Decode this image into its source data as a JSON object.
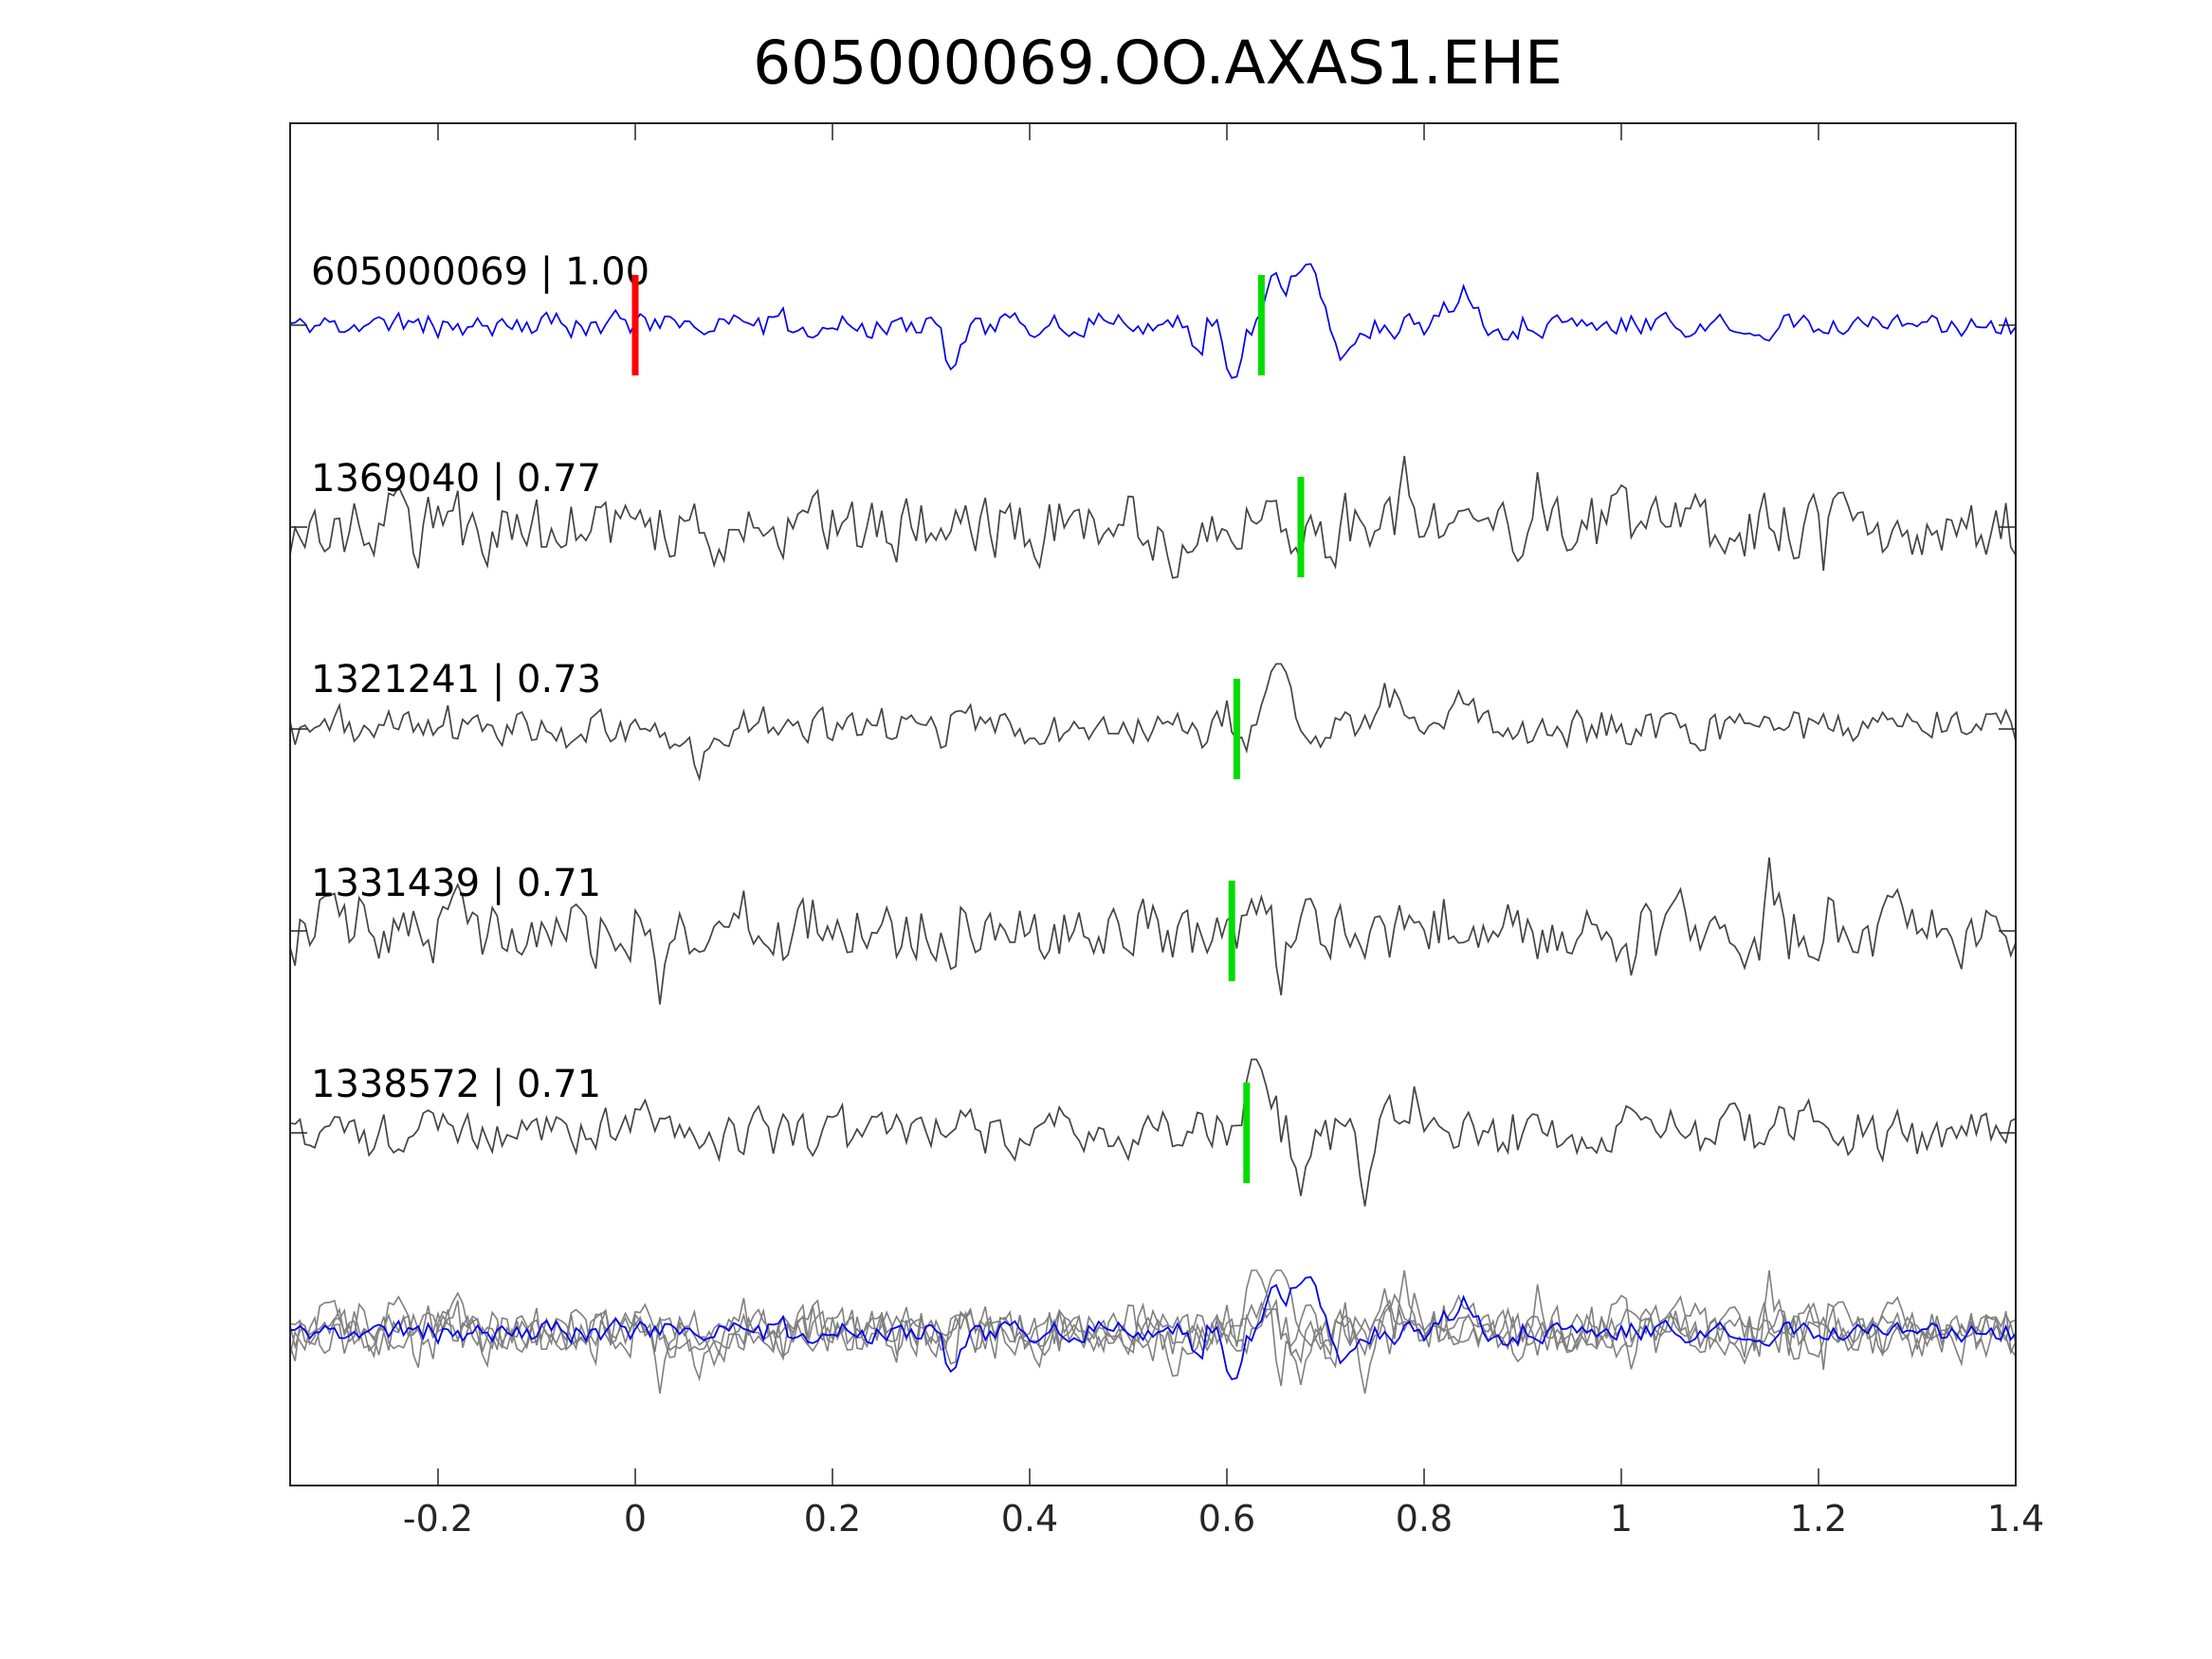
{
  "chart_data": {
    "type": "line",
    "title": "605000069.OO.AXAS1.EHE",
    "xlabel": "",
    "ylabel": "",
    "xlim": [
      -0.35,
      1.4
    ],
    "x_ticks": [
      -0.2,
      0,
      0.2,
      0.4,
      0.6,
      0.8,
      1,
      1.2,
      1.4
    ],
    "x_tick_labels": [
      "-0.2",
      "0",
      "0.2",
      "0.4",
      "0.6",
      "0.8",
      "1",
      "1.2",
      "1.4"
    ],
    "grid": false,
    "x_step": 0.005,
    "colors": {
      "reference": "#0000ee",
      "neighbor": "#444444",
      "overlay": "#808080",
      "reference_pick": "#ff0000",
      "match_pick": "#00dd00",
      "axes": "#262626"
    },
    "series": [
      {
        "label": "605000069 | 1.00",
        "role": "reference",
        "picks": [
          {
            "kind": "reference",
            "x": 0.0
          },
          {
            "kind": "match",
            "x": 0.635
          }
        ],
        "features": [
          {
            "x": 0.32,
            "amp": -0.9,
            "w": 0.006
          },
          {
            "x": 0.572,
            "amp": -0.55,
            "w": 0.006
          },
          {
            "x": 0.585,
            "amp": 0.2,
            "w": 0.01
          },
          {
            "x": 0.605,
            "amp": -1.2,
            "w": 0.008
          },
          {
            "x": 0.65,
            "amp": 0.75,
            "w": 0.01
          },
          {
            "x": 0.68,
            "amp": 1.15,
            "w": 0.012
          },
          {
            "x": 0.72,
            "amp": -0.5,
            "w": 0.012
          },
          {
            "x": 0.84,
            "amp": 0.65,
            "w": 0.012
          }
        ],
        "noise": 0.2,
        "seed": 11
      },
      {
        "label": "1369040 | 0.77",
        "role": "neighbor",
        "picks": [
          {
            "kind": "match",
            "x": 0.675
          }
        ],
        "features": [
          {
            "x": -0.22,
            "amp": -0.9,
            "w": 0.004
          },
          {
            "x": 0.08,
            "amp": -0.75,
            "w": 0.004
          },
          {
            "x": 0.545,
            "amp": -0.7,
            "w": 0.004
          },
          {
            "x": 0.65,
            "amp": 0.9,
            "w": 0.005
          },
          {
            "x": 0.705,
            "amp": -0.9,
            "w": 0.004
          },
          {
            "x": 0.78,
            "amp": 1.1,
            "w": 0.004
          },
          {
            "x": 0.915,
            "amp": 0.8,
            "w": 0.004
          },
          {
            "x": 1.205,
            "amp": -0.6,
            "w": 0.004
          }
        ],
        "noise": 0.5,
        "seed": 23
      },
      {
        "label": "1321241 | 0.73",
        "role": "neighbor",
        "picks": [
          {
            "kind": "match",
            "x": 0.61
          }
        ],
        "features": [
          {
            "x": 0.065,
            "amp": -0.7,
            "w": 0.004
          },
          {
            "x": 0.6,
            "amp": 0.35,
            "w": 0.008
          },
          {
            "x": 0.615,
            "amp": -0.5,
            "w": 0.006
          },
          {
            "x": 0.65,
            "amp": 1.15,
            "w": 0.013
          },
          {
            "x": 0.69,
            "amp": -0.4,
            "w": 0.008
          },
          {
            "x": 0.765,
            "amp": 0.5,
            "w": 0.008
          },
          {
            "x": 0.84,
            "amp": 0.55,
            "w": 0.008
          }
        ],
        "noise": 0.32,
        "seed": 37
      },
      {
        "label": "1331439 | 0.71",
        "role": "neighbor",
        "picks": [
          {
            "kind": "match",
            "x": 0.605
          }
        ],
        "features": [
          {
            "x": 0.025,
            "amp": -1.1,
            "w": 0.004
          },
          {
            "x": 0.11,
            "amp": 0.9,
            "w": 0.004
          },
          {
            "x": 0.155,
            "amp": -0.8,
            "w": 0.004
          },
          {
            "x": 0.495,
            "amp": -0.8,
            "w": 0.004
          },
          {
            "x": 0.655,
            "amp": -0.9,
            "w": 0.004
          },
          {
            "x": 1.01,
            "amp": -0.95,
            "w": 0.004
          },
          {
            "x": 1.15,
            "amp": 1.1,
            "w": 0.004
          }
        ],
        "noise": 0.5,
        "seed": 53
      },
      {
        "label": "1338572 | 0.71",
        "role": "neighbor",
        "picks": [
          {
            "kind": "match",
            "x": 0.62
          }
        ],
        "features": [
          {
            "x": 0.6,
            "amp": -0.4,
            "w": 0.006
          },
          {
            "x": 0.63,
            "amp": 1.15,
            "w": 0.011
          },
          {
            "x": 0.68,
            "amp": -0.9,
            "w": 0.009
          },
          {
            "x": 0.742,
            "amp": -0.85,
            "w": 0.006
          },
          {
            "x": 0.79,
            "amp": 0.55,
            "w": 0.015
          },
          {
            "x": 0.945,
            "amp": -0.45,
            "w": 0.008
          },
          {
            "x": 1.4,
            "amp": 0.4,
            "w": 0.006
          }
        ],
        "noise": 0.38,
        "seed": 71
      }
    ]
  }
}
